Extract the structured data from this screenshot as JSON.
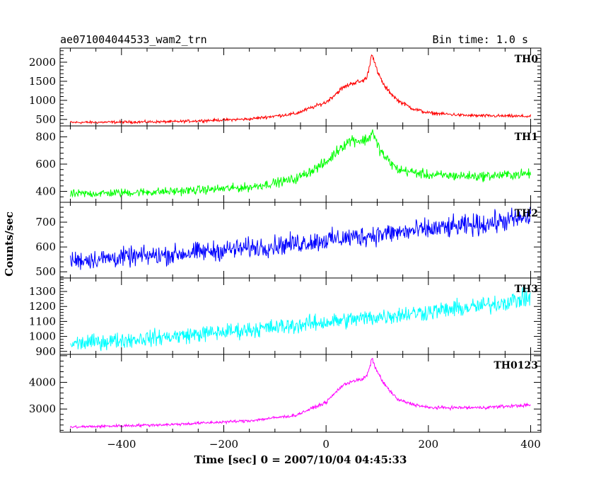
{
  "header": {
    "title": "ae071004044533_wam2_trn",
    "bin_time": "Bin time: 1.0 s"
  },
  "axes": {
    "xlabel": "Time [sec] 0 = 2007/10/04 04:45:33",
    "ylabel": "Counts/sec"
  },
  "colors": {
    "TH0": "#ff0000",
    "TH1": "#00ff00",
    "TH2": "#0000ff",
    "TH3": "#00ffff",
    "TH0123": "#ff00ff"
  },
  "chart_data": [
    {
      "type": "line",
      "name": "TH0",
      "color": "#ff0000",
      "xlim": [
        -520,
        420
      ],
      "ylim": [
        330,
        2370
      ],
      "yticks": [
        500,
        1000,
        1500,
        2000
      ],
      "xticks": [
        -400,
        -200,
        0,
        200,
        400
      ],
      "noise": 30,
      "knots": [
        [
          -500,
          420
        ],
        [
          -300,
          440
        ],
        [
          -150,
          510
        ],
        [
          -60,
          650
        ],
        [
          0,
          950
        ],
        [
          30,
          1300
        ],
        [
          50,
          1450
        ],
        [
          70,
          1500
        ],
        [
          80,
          1600
        ],
        [
          90,
          2250
        ],
        [
          100,
          1750
        ],
        [
          115,
          1350
        ],
        [
          140,
          1000
        ],
        [
          170,
          780
        ],
        [
          200,
          670
        ],
        [
          280,
          600
        ],
        [
          400,
          580
        ]
      ]
    },
    {
      "type": "line",
      "name": "TH1",
      "color": "#00ff00",
      "xlim": [
        -520,
        420
      ],
      "ylim": [
        320,
        880
      ],
      "yticks": [
        400,
        600,
        800
      ],
      "xticks": [
        -400,
        -200,
        0,
        200,
        400
      ],
      "noise": 26,
      "knots": [
        [
          -500,
          380
        ],
        [
          -300,
          400
        ],
        [
          -150,
          430
        ],
        [
          -60,
          490
        ],
        [
          0,
          610
        ],
        [
          30,
          730
        ],
        [
          50,
          780
        ],
        [
          70,
          770
        ],
        [
          85,
          790
        ],
        [
          90,
          850
        ],
        [
          100,
          740
        ],
        [
          115,
          650
        ],
        [
          140,
          560
        ],
        [
          200,
          520
        ],
        [
          300,
          510
        ],
        [
          400,
          530
        ]
      ]
    },
    {
      "type": "line",
      "name": "TH2",
      "color": "#0000ff",
      "xlim": [
        -520,
        420
      ],
      "ylim": [
        475,
        780
      ],
      "yticks": [
        500,
        600,
        700
      ],
      "xticks": [
        -400,
        -200,
        0,
        200,
        400
      ],
      "noise": 33,
      "knots": [
        [
          -500,
          545
        ],
        [
          -300,
          570
        ],
        [
          -100,
          605
        ],
        [
          100,
          650
        ],
        [
          300,
          690
        ],
        [
          400,
          720
        ]
      ]
    },
    {
      "type": "line",
      "name": "TH3",
      "color": "#00ffff",
      "xlim": [
        -520,
        420
      ],
      "ylim": [
        880,
        1390
      ],
      "yticks": [
        900,
        1000,
        1100,
        1200,
        1300
      ],
      "xticks": [
        -400,
        -200,
        0,
        200,
        400
      ],
      "noise": 45,
      "knots": [
        [
          -500,
          950
        ],
        [
          -300,
          1000
        ],
        [
          -100,
          1060
        ],
        [
          100,
          1130
        ],
        [
          300,
          1200
        ],
        [
          400,
          1260
        ]
      ]
    },
    {
      "type": "line",
      "name": "TH0123",
      "color": "#ff00ff",
      "xlim": [
        -520,
        420
      ],
      "ylim": [
        2130,
        5050
      ],
      "yticks": [
        3000,
        4000
      ],
      "xticks": [
        -400,
        -200,
        0,
        200,
        400
      ],
      "noise": 45,
      "knots": [
        [
          -500,
          2320
        ],
        [
          -300,
          2420
        ],
        [
          -150,
          2560
        ],
        [
          -60,
          2760
        ],
        [
          0,
          3250
        ],
        [
          30,
          3850
        ],
        [
          50,
          4050
        ],
        [
          70,
          4100
        ],
        [
          80,
          4250
        ],
        [
          90,
          4880
        ],
        [
          100,
          4400
        ],
        [
          115,
          3900
        ],
        [
          140,
          3350
        ],
        [
          170,
          3180
        ],
        [
          200,
          3050
        ],
        [
          300,
          3050
        ],
        [
          400,
          3150
        ]
      ]
    }
  ]
}
